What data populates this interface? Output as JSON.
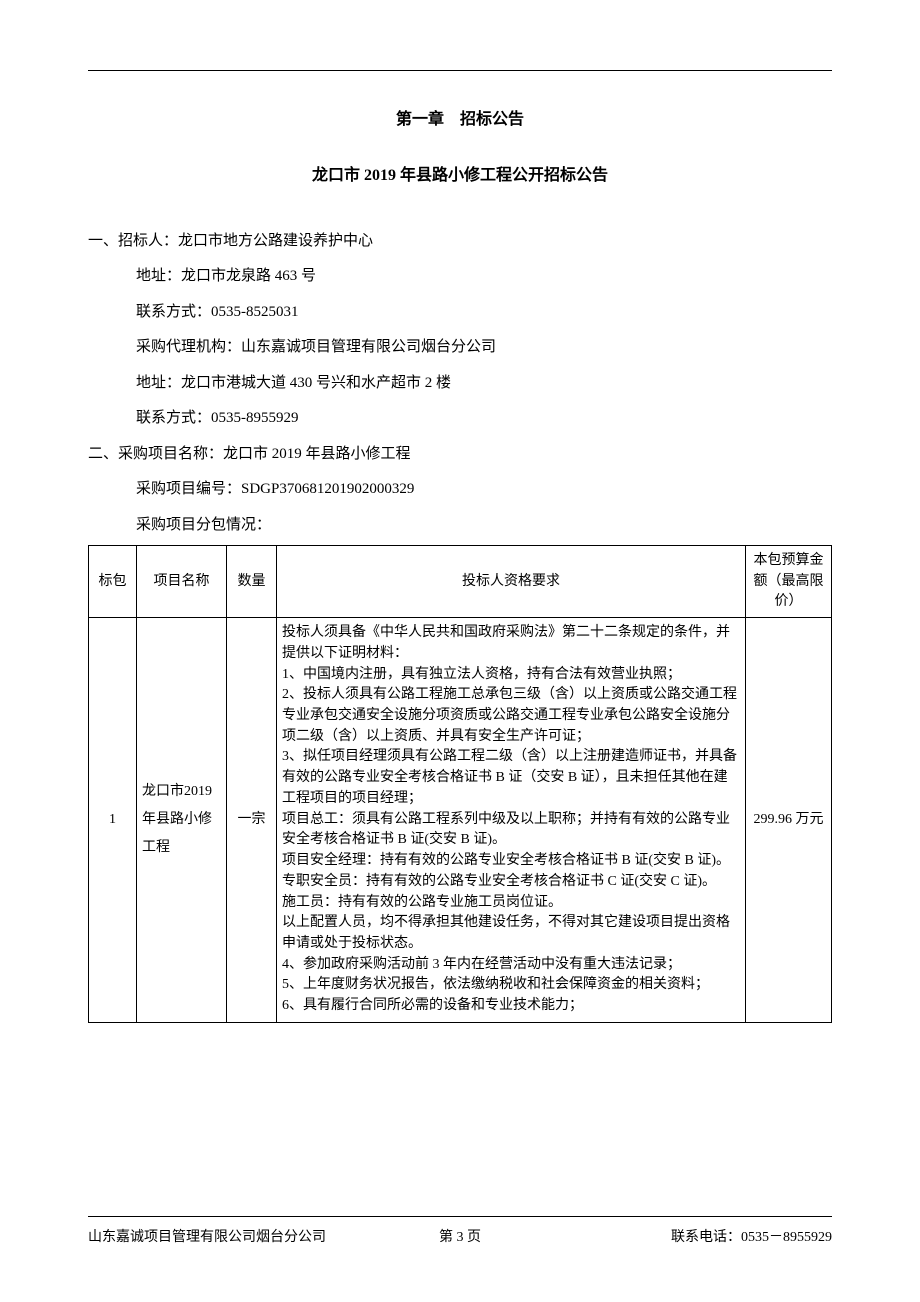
{
  "chapter_title": "第一章　招标公告",
  "doc_title": "龙口市 2019 年县路小修工程公开招标公告",
  "section1": {
    "heading": "一、招标人：龙口市地方公路建设养护中心",
    "address": "地址：龙口市龙泉路 463 号",
    "contact": "联系方式：0535-8525031",
    "agency": "采购代理机构：山东嘉诚项目管理有限公司烟台分公司",
    "agency_address": "地址：龙口市港城大道 430 号兴和水产超市 2 楼",
    "agency_contact": "联系方式：0535-8955929"
  },
  "section2": {
    "heading": "二、采购项目名称：龙口市 2019 年县路小修工程",
    "project_number": "采购项目编号：SDGP370681201902000329",
    "subpackage_intro": "采购项目分包情况："
  },
  "table": {
    "headers": {
      "bid": "标包",
      "name": "项目名称",
      "qty": "数量",
      "req": "投标人资格要求",
      "budget": "本包预算金额（最高限价）"
    },
    "row": {
      "bid": "1",
      "name": "龙口市2019 年县路小修工程",
      "qty": "一宗",
      "req": "投标人须具备《中华人民共和国政府采购法》第二十二条规定的条件，并提供以下证明材料：\n1、中国境内注册，具有独立法人资格，持有合法有效营业执照；\n2、投标人须具有公路工程施工总承包三级（含）以上资质或公路交通工程专业承包交通安全设施分项资质或公路交通工程专业承包公路安全设施分项二级（含）以上资质、并具有安全生产许可证；\n3、拟任项目经理须具有公路工程二级（含）以上注册建造师证书，并具备有效的公路专业安全考核合格证书 B 证（交安 B 证），且未担任其他在建工程项目的项目经理；\n项目总工：须具有公路工程系列中级及以上职称；并持有有效的公路专业安全考核合格证书 B 证(交安 B 证)。\n项目安全经理：持有有效的公路专业安全考核合格证书 B 证(交安 B 证)。\n专职安全员：持有有效的公路专业安全考核合格证书 C 证(交安 C 证)。\n施工员：持有有效的公路专业施工员岗位证。\n以上配置人员，均不得承担其他建设任务，不得对其它建设项目提出资格申请或处于投标状态。\n4、参加政府采购活动前 3 年内在经营活动中没有重大违法记录；\n5、上年度财务状况报告，依法缴纳税收和社会保障资金的相关资料；\n6、具有履行合同所必需的设备和专业技术能力；",
      "budget": "299.96 万元"
    }
  },
  "footer": {
    "left": "山东嘉诚项目管理有限公司烟台分公司",
    "center": "第 3 页",
    "right": "联系电话：0535－8955929"
  }
}
